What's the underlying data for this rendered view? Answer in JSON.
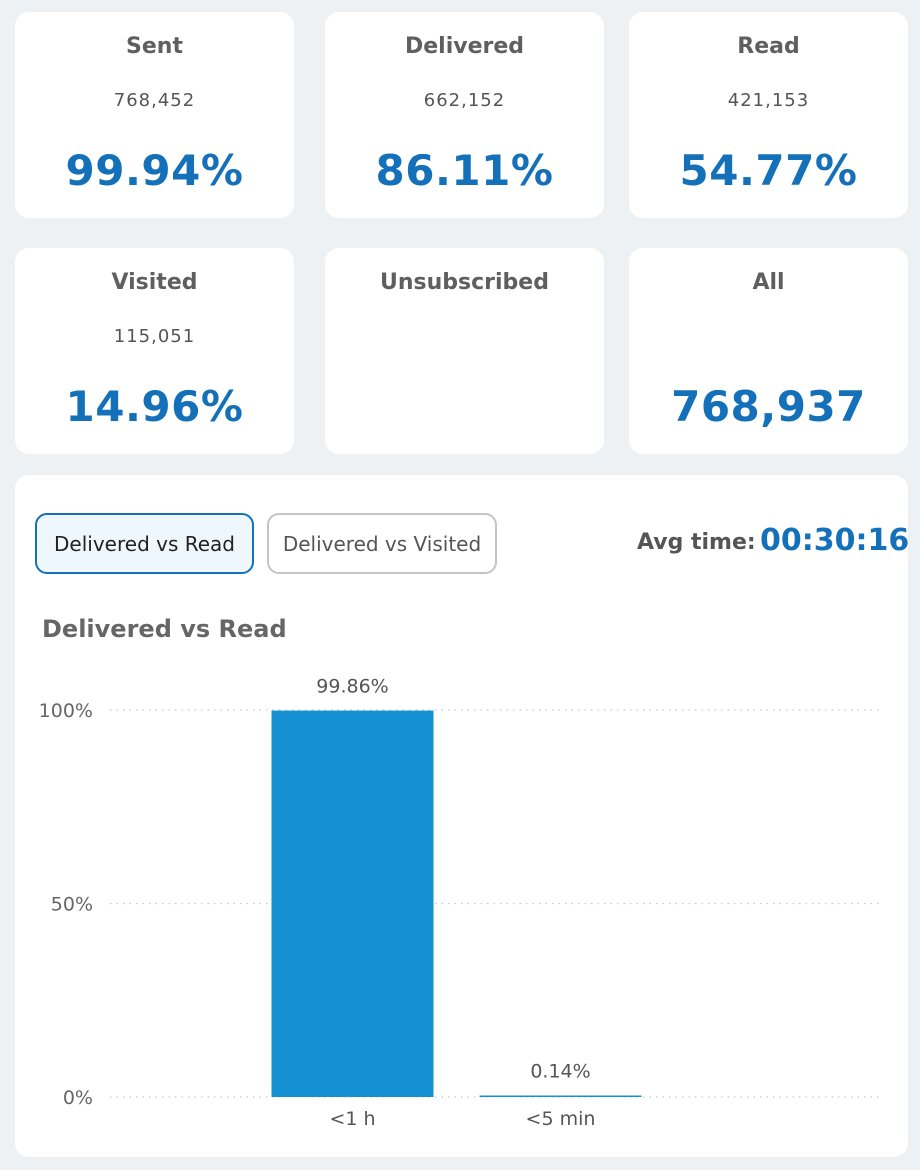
{
  "stats": [
    {
      "title": "Sent",
      "count": "768,452",
      "value": "99.94%"
    },
    {
      "title": "Delivered",
      "count": "662,152",
      "value": "86.11%"
    },
    {
      "title": "Read",
      "count": "421,153",
      "value": "54.77%"
    },
    {
      "title": "Visited",
      "count": "115,051",
      "value": "14.96%"
    },
    {
      "title": "Unsubscribed",
      "count": "",
      "value": ""
    },
    {
      "title": "All",
      "count": "",
      "value": "768,937"
    }
  ],
  "tabs": [
    {
      "label": "Delivered vs Read",
      "active": true
    },
    {
      "label": "Delivered vs Visited",
      "active": false
    }
  ],
  "avg_time": {
    "label": "Avg time:",
    "value": "00:30:16"
  },
  "colors": {
    "accent": "#1470b8",
    "bar": "#1590d2",
    "background": "#eef1f4"
  },
  "chart_data": {
    "type": "bar",
    "title": "Delivered vs Read",
    "categories": [
      "<1 h",
      "<5 min"
    ],
    "values": [
      99.86,
      0.14
    ],
    "data_labels": [
      "99.86%",
      "0.14%"
    ],
    "ylim": [
      0,
      100
    ],
    "yticks": [
      0,
      50,
      100
    ],
    "ytick_labels": [
      "0%",
      "50%",
      "100%"
    ],
    "grid": true,
    "xlabel": "",
    "ylabel": ""
  }
}
